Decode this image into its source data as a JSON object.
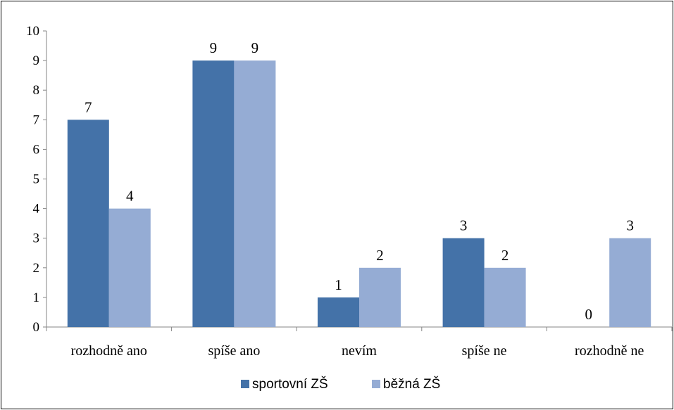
{
  "chart_data": {
    "type": "bar",
    "categories": [
      "rozhodně ano",
      "spíše ano",
      "nevím",
      "spíše ne",
      "rozhodně ne"
    ],
    "series": [
      {
        "name": "sportovní ZŠ",
        "color": "#4472a8",
        "values": [
          7,
          9,
          1,
          3,
          0
        ]
      },
      {
        "name": "běžná ZŠ",
        "color": "#95acd4",
        "values": [
          4,
          9,
          2,
          2,
          3
        ]
      }
    ],
    "ylim": [
      0,
      10
    ],
    "yticks": [
      0,
      1,
      2,
      3,
      4,
      5,
      6,
      7,
      8,
      9,
      10
    ],
    "grid": false,
    "legend_position": "bottom",
    "data_labels": true
  }
}
